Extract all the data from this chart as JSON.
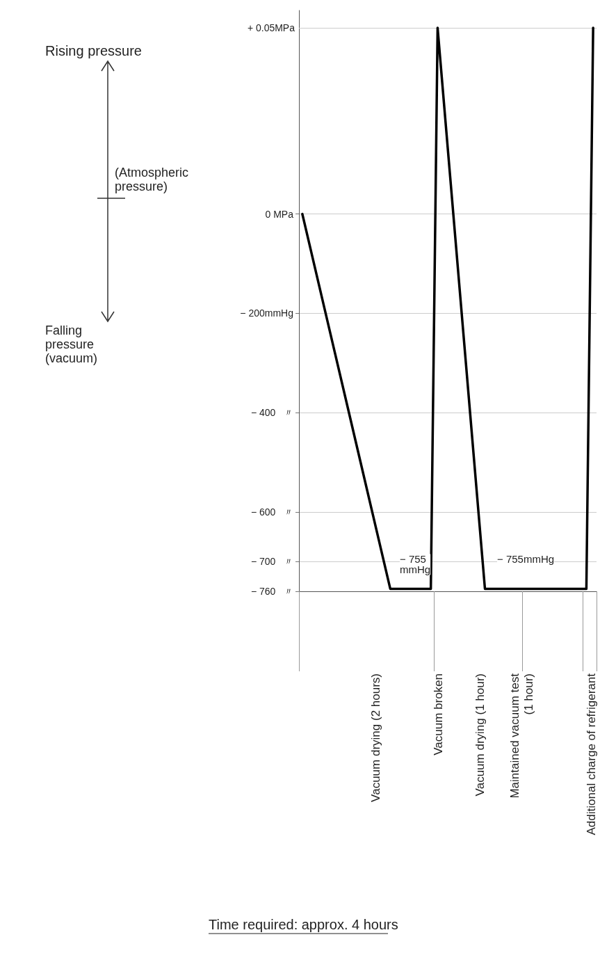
{
  "chart_data": {
    "type": "line",
    "categories": [
      null,
      null,
      null,
      null,
      null,
      null,
      null,
      null,
      null,
      null,
      null,
      null,
      null,
      null,
      null,
      null,
      null,
      null,
      null,
      null,
      null,
      null,
      null,
      null,
      null,
      null,
      null,
      null,
      null,
      null,
      null,
      null,
      null,
      null,
      null,
      null,
      null,
      null,
      null,
      null,
      null,
      null,
      null,
      null
    ],
    "series": [
      {
        "color": "#000000",
        "values": [
          0,
          null,
          null,
          null,
          null,
          null,
          null,
          null,
          null,
          null,
          null,
          null,
          null,
          -755,
          null,
          null,
          null,
          null,
          null,
          -755,
          375,
          null,
          null,
          null,
          null,
          null,
          null,
          -755,
          null,
          null,
          null,
          null,
          null,
          null,
          null,
          null,
          null,
          null,
          null,
          null,
          null,
          null,
          -755,
          375
        ]
      }
    ],
    "ylim": [
      -760,
      410
    ],
    "yticks": [
      {
        "value": 0,
        "label": "0 MPa"
      },
      {
        "value": -200,
        "label": "− 200mmHg"
      },
      {
        "value": -400,
        "label": "− 400   〃"
      },
      {
        "value": -600,
        "label": "− 600   〃"
      },
      {
        "value": -700,
        "label": "− 700   〃"
      },
      {
        "value": -760,
        "label": "− 760   〃"
      }
    ],
    "tick_labels": "y",
    "ref_lines": [
      {
        "axis": "y",
        "value": 375,
        "label": "+ 0.05MPa",
        "color": "#cccccc"
      }
    ],
    "grid": "y",
    "marker": "none",
    "line_style": "solid",
    "annotations": [
      {
        "text": "− 755\nmmHg",
        "y": -755
      },
      {
        "text": "− 755mmHg",
        "y": -755
      },
      "Vacuum drying (2 hours)",
      "Vacuum broken",
      "Vacuum drying (1 hour)",
      "Maintained vacuum test\n(1 hour)",
      "Additional charge of refrigerant",
      "Rising pressure",
      "(Atmospheric\npressure)",
      "Falling\npressure\n(vacuum)",
      "Time required: approx. 4 hours"
    ]
  }
}
